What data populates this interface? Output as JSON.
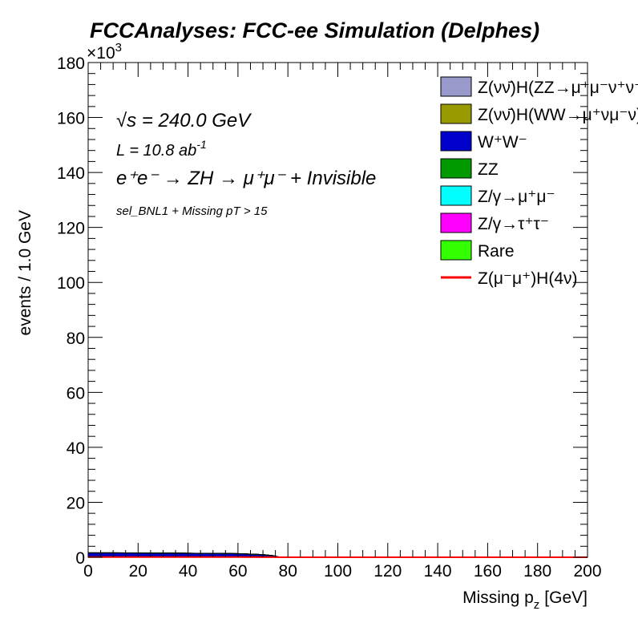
{
  "chart_data": {
    "type": "area",
    "title": "FCCAnalyses: FCC-ee Simulation (Delphes)",
    "xlabel": "Missing p",
    "xlabel_sub": "z",
    "xlabel_unit": "[GeV]",
    "ylabel": "events / 1.0 GeV",
    "xlim": [
      0,
      200
    ],
    "ylim": [
      0,
      180000
    ],
    "y_multiplier": "×10",
    "y_multiplier_exp": "3",
    "xticks": [
      "0",
      "20",
      "40",
      "60",
      "80",
      "100",
      "120",
      "140",
      "160",
      "180",
      "200"
    ],
    "yticks": [
      "0",
      "20",
      "40",
      "60",
      "80",
      "100",
      "120",
      "140",
      "160",
      "180"
    ],
    "grid": false,
    "legend_position": "top-right",
    "annotations": {
      "sqrt_s": "√s = 240.0 GeV",
      "lumi": "L = 10.8 ab",
      "lumi_exp": "-1",
      "process": "e⁺e⁻ → ZH → μ⁺μ⁻ + Invisible",
      "selection": "sel_BNL1 + Missing pT > 15"
    },
    "x": [
      0,
      10,
      20,
      30,
      40,
      50,
      60,
      70,
      74,
      76,
      78,
      80,
      200
    ],
    "series": [
      {
        "name": "Z(νν̄)H(ZZ→μ⁺μ⁻ν⁺ν⁻)",
        "color": "#9999cc",
        "values": [
          50,
          50,
          50,
          50,
          50,
          50,
          50,
          40,
          20,
          10,
          0,
          0,
          0
        ]
      },
      {
        "name": "Z(νν̄)H(WW→μ⁺νμ⁻ν)",
        "color": "#999900",
        "values": [
          250,
          250,
          250,
          250,
          250,
          250,
          250,
          300,
          200,
          100,
          30,
          0,
          0
        ]
      },
      {
        "name": "W⁺W⁻",
        "color": "#0000cc",
        "values": [
          1200,
          1200,
          1150,
          1100,
          1050,
          1000,
          900,
          500,
          300,
          100,
          0,
          0,
          0
        ]
      },
      {
        "name": "ZZ",
        "color": "#009900",
        "values": [
          200,
          200,
          200,
          200,
          200,
          200,
          200,
          200,
          150,
          60,
          0,
          0,
          0
        ]
      },
      {
        "name": "Z/γ→μ⁺μ⁻",
        "color": "#00ffff",
        "values": [
          0,
          0,
          0,
          0,
          0,
          0,
          0,
          0,
          0,
          0,
          0,
          0,
          0
        ]
      },
      {
        "name": "Z/γ→τ⁺τ⁻",
        "color": "#ff00ff",
        "values": [
          0,
          0,
          0,
          0,
          0,
          0,
          0,
          0,
          0,
          0,
          0,
          0,
          0
        ]
      },
      {
        "name": "Rare",
        "color": "#33ff00",
        "values": [
          0,
          0,
          0,
          0,
          0,
          0,
          0,
          0,
          0,
          0,
          0,
          0,
          0
        ]
      },
      {
        "name": "Z(μ⁻μ⁺)H(4ν)",
        "color": "#ff0000",
        "style": "line",
        "values": [
          50,
          50,
          50,
          50,
          50,
          50,
          50,
          40,
          20,
          10,
          0,
          0,
          0
        ]
      }
    ]
  }
}
